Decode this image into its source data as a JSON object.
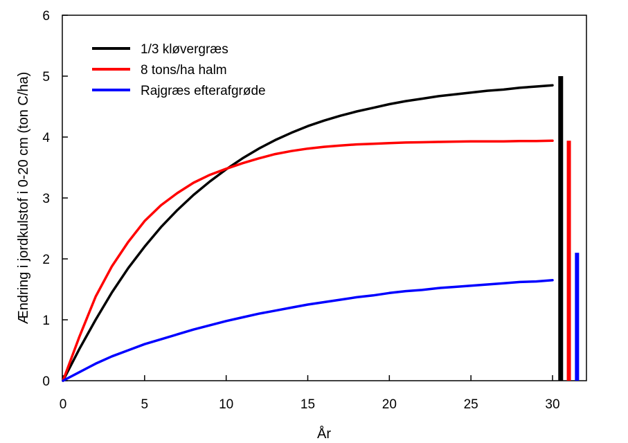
{
  "chart_data": {
    "type": "line",
    "xlabel": "År",
    "ylabel": "Ændring i jordkulstof i 0-20 cm (ton C/ha)",
    "xlim": [
      0,
      32
    ],
    "ylim": [
      0,
      6
    ],
    "x_ticks": [
      "0",
      "5",
      "10",
      "15",
      "20",
      "25",
      "30"
    ],
    "y_ticks": [
      "0",
      "1",
      "2",
      "3",
      "4",
      "5",
      "6"
    ],
    "grid": false,
    "legend_position": "top-left",
    "x": [
      0,
      1,
      2,
      3,
      4,
      5,
      6,
      7,
      8,
      9,
      10,
      11,
      12,
      13,
      14,
      15,
      16,
      17,
      18,
      19,
      20,
      21,
      22,
      23,
      24,
      25,
      26,
      27,
      28,
      29,
      30
    ],
    "series": [
      {
        "name": "1/3 kløvergræs",
        "color": "#000000",
        "values": [
          0,
          0.52,
          1.0,
          1.45,
          1.85,
          2.2,
          2.52,
          2.8,
          3.05,
          3.27,
          3.47,
          3.65,
          3.81,
          3.95,
          4.07,
          4.18,
          4.27,
          4.35,
          4.42,
          4.48,
          4.54,
          4.59,
          4.63,
          4.67,
          4.7,
          4.73,
          4.76,
          4.78,
          4.81,
          4.83,
          4.85
        ],
        "bar": {
          "x": 30.5,
          "value": 5.0
        }
      },
      {
        "name": "8 tons/ha halm",
        "color": "#ff0000",
        "values": [
          0,
          0.72,
          1.38,
          1.88,
          2.28,
          2.62,
          2.88,
          3.08,
          3.25,
          3.38,
          3.48,
          3.57,
          3.65,
          3.72,
          3.77,
          3.81,
          3.84,
          3.86,
          3.88,
          3.89,
          3.9,
          3.91,
          3.915,
          3.92,
          3.925,
          3.93,
          3.93,
          3.93,
          3.935,
          3.935,
          3.94
        ],
        "bar": {
          "x": 31.0,
          "value": 3.94
        }
      },
      {
        "name": "Rajgræs efterafgrøde",
        "color": "#0000ff",
        "values": [
          0,
          0.14,
          0.28,
          0.4,
          0.5,
          0.6,
          0.68,
          0.76,
          0.84,
          0.91,
          0.98,
          1.04,
          1.1,
          1.15,
          1.2,
          1.25,
          1.29,
          1.33,
          1.37,
          1.4,
          1.44,
          1.47,
          1.49,
          1.52,
          1.54,
          1.56,
          1.58,
          1.6,
          1.62,
          1.63,
          1.65
        ],
        "bar": {
          "x": 31.5,
          "value": 2.1
        }
      }
    ]
  }
}
